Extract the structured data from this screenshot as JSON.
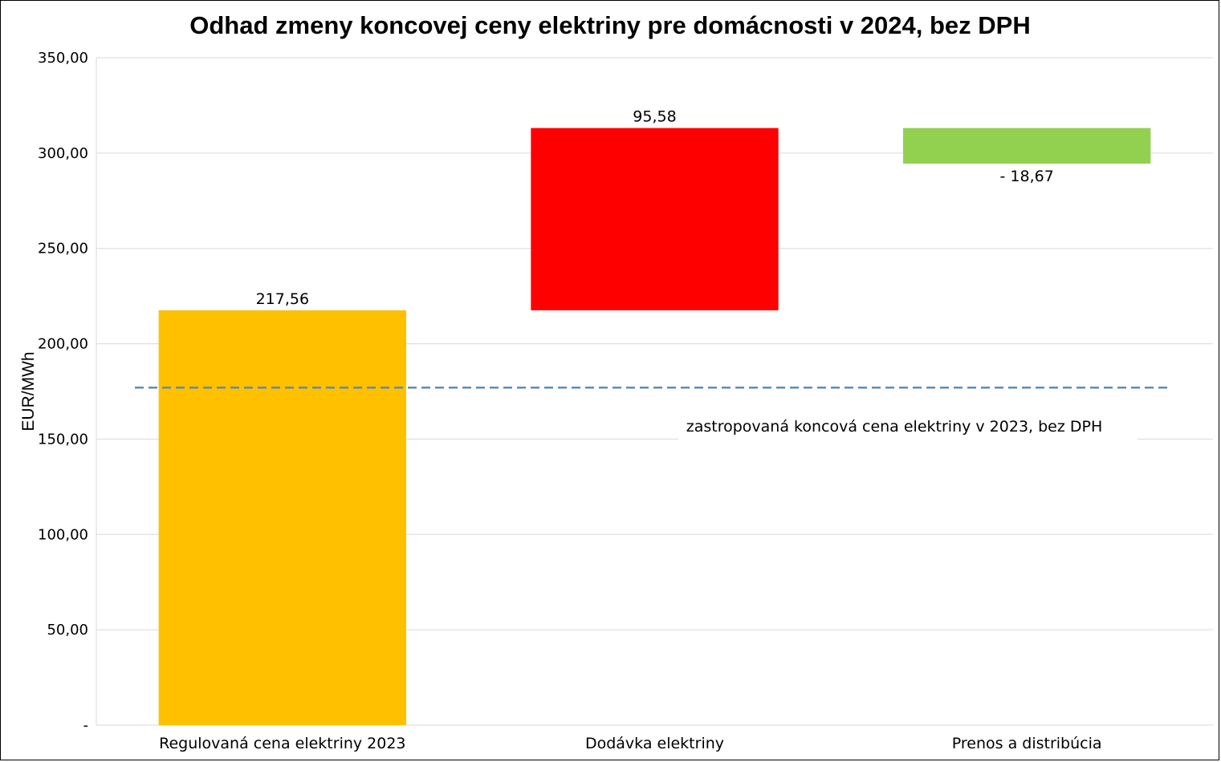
{
  "chart_data": {
    "type": "bar",
    "subtype": "waterfall",
    "title": "Odhad zmeny koncovej ceny elektriny pre domácnosti v 2024, bez DPH",
    "xlabel": "",
    "ylabel": "EUR/MWh",
    "ylim": [
      0,
      350
    ],
    "yticks": [
      0,
      50,
      100,
      150,
      200,
      250,
      300,
      350
    ],
    "ytick_labels": [
      "-",
      "50,00",
      "100,00",
      "150,00",
      "200,00",
      "250,00",
      "300,00",
      "350,00"
    ],
    "grid": true,
    "legend": "none",
    "categories": [
      "Regulovaná cena elektriny 2023",
      "Dodávka elektriny",
      "Prenos a distribúcia"
    ],
    "values": [
      217.56,
      95.58,
      -18.67
    ],
    "bases": [
      0,
      217.56,
      313.14
    ],
    "data_labels": [
      "217,56",
      "95,58",
      "- 18,67"
    ],
    "colors": [
      "#FFC000",
      "#FF0000",
      "#92D050"
    ],
    "reference_line": {
      "value": 177,
      "label": "zastropovaná koncová cena elektriny v 2023, bez DPH",
      "color": "#5B8DB8",
      "style": "dashed"
    }
  }
}
